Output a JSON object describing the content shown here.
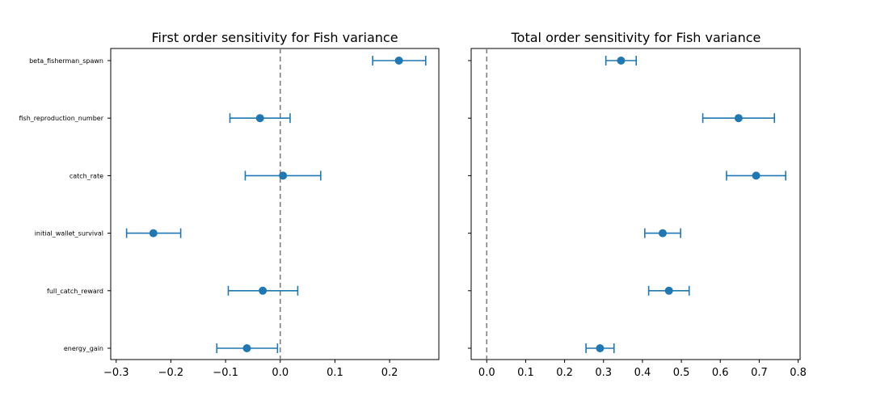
{
  "chart_data": [
    {
      "type": "scatter",
      "title": "First order sensitivity for Fish variance",
      "xlabel": "",
      "ylabel": "",
      "xlim": [
        -0.31,
        0.29
      ],
      "xticks": [
        -0.3,
        -0.2,
        -0.1,
        0.0,
        0.1,
        0.2
      ],
      "xtick_labels": [
        "−0.3",
        "−0.2",
        "−0.1",
        "0.0",
        "0.1",
        "0.2"
      ],
      "reference_line_x": 0.0,
      "categories": [
        "beta_fisherman_spawn",
        "fish_reproduction_number",
        "catch_rate",
        "initial_wallet_survival",
        "full_catch_reward",
        "energy_gain"
      ],
      "show_category_labels": true,
      "values": [
        0.217,
        -0.037,
        0.005,
        -0.232,
        -0.032,
        -0.061
      ],
      "error_low": [
        0.169,
        -0.092,
        -0.064,
        -0.281,
        -0.095,
        -0.116
      ],
      "error_high": [
        0.266,
        0.018,
        0.074,
        -0.182,
        0.032,
        -0.005
      ],
      "grid": false,
      "color": "#1f77b4"
    },
    {
      "type": "scatter",
      "title": "Total order sensitivity for Fish variance",
      "xlabel": "",
      "ylabel": "",
      "xlim": [
        -0.04,
        0.805
      ],
      "xticks": [
        0.0,
        0.1,
        0.2,
        0.3,
        0.4,
        0.5,
        0.6,
        0.7,
        0.8
      ],
      "xtick_labels": [
        "0.0",
        "0.1",
        "0.2",
        "0.3",
        "0.4",
        "0.5",
        "0.6",
        "0.7",
        "0.8"
      ],
      "reference_line_x": 0.0,
      "categories": [
        "beta_fisherman_spawn",
        "fish_reproduction_number",
        "catch_rate",
        "initial_wallet_survival",
        "full_catch_reward",
        "energy_gain"
      ],
      "show_category_labels": false,
      "values": [
        0.345,
        0.647,
        0.692,
        0.452,
        0.468,
        0.291
      ],
      "error_low": [
        0.306,
        0.555,
        0.616,
        0.406,
        0.416,
        0.255
      ],
      "error_high": [
        0.384,
        0.739,
        0.768,
        0.498,
        0.52,
        0.327
      ],
      "grid": false,
      "color": "#1f77b4"
    }
  ]
}
